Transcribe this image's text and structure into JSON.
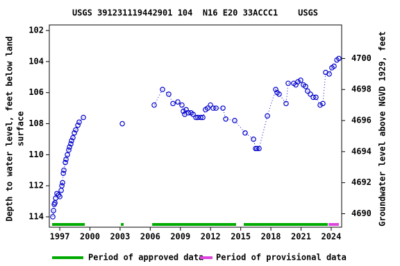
{
  "chart_data": {
    "type": "line",
    "title": "USGS 391231119442901 104  N16 E20 33ACCC1    USGS",
    "ylabel": [
      "Depth to water level, feet below land",
      "surface"
    ],
    "y2label": "Groundwater level above NGVD 1929, feet",
    "xlim": [
      1995.96,
      2025.04
    ],
    "xticks": [
      1997,
      2000,
      2003,
      2006,
      2009,
      2012,
      2015,
      2018,
      2021,
      2024
    ],
    "ylim": [
      114.67,
      101.64
    ],
    "yticks": [
      102,
      104,
      106,
      108,
      110,
      112,
      114
    ],
    "y2lim": [
      4689.13,
      4702.16
    ],
    "y2ticks": [
      4690,
      4692,
      4694,
      4696,
      4698,
      4700
    ],
    "series": [
      {
        "color": "#0000cc",
        "x": [
          1996.31,
          1996.38,
          1996.45,
          1996.52,
          1996.59,
          1996.72,
          1996.86,
          1997.0,
          1997.14,
          1997.21,
          1997.28,
          1997.35,
          1997.41,
          1997.55,
          1997.62,
          1997.76,
          1997.9,
          1997.97,
          1998.1,
          1998.17,
          1998.31,
          1998.45,
          1998.59,
          1998.8,
          1998.93,
          1999.35,
          2001.0,
          2003.22,
          2005.0,
          2006.39,
          2007.22,
          2007.84,
          2008.26,
          2008.74,
          2009.15,
          2009.29,
          2009.43,
          2009.57,
          2009.78,
          2010.05,
          2010.26,
          2010.54,
          2010.74,
          2011.02,
          2011.23,
          2011.5,
          2011.71,
          2011.99,
          2012.26,
          2012.54,
          2013.23,
          2013.51,
          2014.4,
          2015.44,
          2016.27,
          2016.48,
          2016.61,
          2016.82,
          2017.65,
          2018.48,
          2018.62,
          2018.82,
          2019.51,
          2019.72,
          2020.27,
          2020.48,
          2020.69,
          2020.96,
          2021.24,
          2021.45,
          2021.65,
          2021.93,
          2022.21,
          2022.48,
          2022.9,
          2023.17,
          2023.45,
          2023.8,
          2024.07,
          2024.28,
          2024.56,
          2024.76
        ],
        "values": [
          114.0,
          113.6,
          113.2,
          113.1,
          112.8,
          112.5,
          112.6,
          112.7,
          112.3,
          112.0,
          111.8,
          111.2,
          111.0,
          110.5,
          110.3,
          110.0,
          109.7,
          109.5,
          109.3,
          109.1,
          108.9,
          108.6,
          108.4,
          108.1,
          107.9,
          107.6,
          null,
          108.0,
          null,
          106.8,
          105.8,
          106.1,
          106.7,
          106.6,
          106.8,
          107.2,
          107.4,
          107.1,
          107.3,
          107.3,
          107.4,
          107.6,
          107.6,
          107.6,
          107.6,
          107.1,
          107.0,
          106.8,
          107.0,
          107.0,
          107.0,
          107.7,
          107.8,
          108.6,
          109.0,
          109.6,
          109.6,
          109.6,
          107.5,
          105.8,
          106.0,
          106.1,
          106.7,
          105.4,
          105.4,
          105.5,
          105.3,
          105.2,
          105.5,
          105.6,
          105.9,
          106.1,
          106.3,
          106.3,
          106.8,
          106.7,
          104.7,
          104.8,
          104.4,
          104.3,
          103.9,
          103.8
        ]
      }
    ],
    "periods": [
      {
        "name": "Period of approved data",
        "color": "#00aa00",
        "ranges": [
          [
            1996.24,
            1999.49
          ],
          [
            2003.08,
            2003.35
          ],
          [
            2006.19,
            2014.54
          ],
          [
            2015.3,
            2023.66
          ]
        ]
      },
      {
        "name": "Period of provisional data",
        "color": "#dd44dd",
        "ranges": [
          [
            2023.73,
            2024.76
          ]
        ]
      }
    ]
  }
}
